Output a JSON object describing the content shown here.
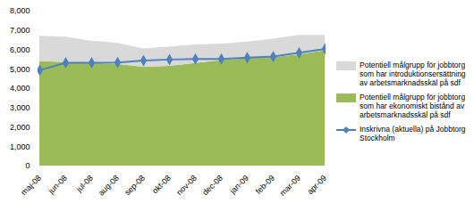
{
  "chart_data": {
    "type": "area",
    "categories": [
      "maj-08",
      "jun-08",
      "jul-08",
      "aug-08",
      "sep-08",
      "okt-08",
      "nov-08",
      "dec-08",
      "jan-09",
      "feb-09",
      "mar-09",
      "apr-09"
    ],
    "series": [
      {
        "name": "Potentiell målgrupp för jobbtorg som har introduktionsersättning av arbetsmarknadsskäl på sdf",
        "type": "area",
        "color": "#d9d9d9",
        "values": [
          1300,
          1300,
          1150,
          1100,
          950,
          1000,
          950,
          850,
          850,
          950,
          1000,
          800
        ]
      },
      {
        "name": "Potentiell målgrupp för jobbtorg som har ekonomiskt bistånd av arbetsmarknadsskäl på sdf",
        "type": "area",
        "color": "#9bbb59",
        "values": [
          5400,
          5350,
          5300,
          5250,
          5100,
          5150,
          5300,
          5450,
          5550,
          5600,
          5750,
          5950
        ]
      },
      {
        "name": "Inskrivna (aktuella) på Jobbtorg Stockholm",
        "type": "line",
        "color": "#4f81bd",
        "marker": "diamond",
        "values": [
          4950,
          5330,
          5330,
          5350,
          5450,
          5500,
          5530,
          5530,
          5600,
          5650,
          5850,
          6050
        ]
      }
    ],
    "stacked": true,
    "ylim": [
      0,
      8000
    ],
    "yticks": [
      0,
      1000,
      2000,
      3000,
      4000,
      5000,
      6000,
      7000,
      8000
    ],
    "grid": false,
    "legend": "right"
  }
}
